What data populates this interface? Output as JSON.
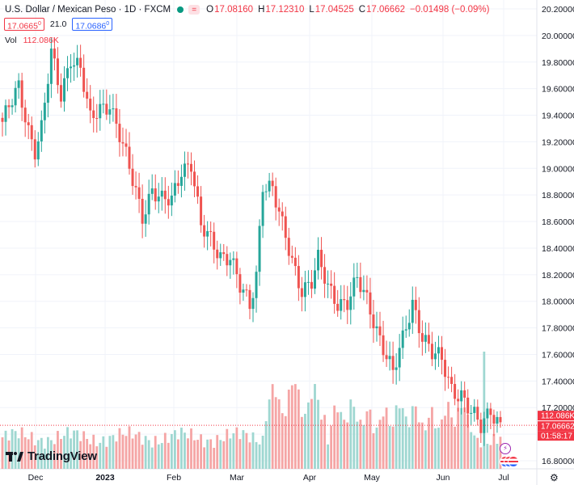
{
  "header": {
    "symbol": "U.S. Dollar / Mexican Peso · 1D · FXCM",
    "o_label": "O",
    "o_value": "17.08160",
    "h_label": "H",
    "h_value": "17.12310",
    "l_label": "L",
    "l_value": "17.04525",
    "c_label": "C",
    "c_value": "17.06662",
    "change": "−0.01498 (−0.09%)",
    "eq_icon": "equals-icon"
  },
  "quote": {
    "sell": "17.0665",
    "sell_small": "0",
    "spread": "21.0",
    "buy": "17.0686",
    "buy_small": "0"
  },
  "volume": {
    "label": "Vol",
    "value": "112.086K"
  },
  "price_badges": {
    "volume": "112.086K",
    "last": "17.06662",
    "countdown": "01:58:17"
  },
  "branding": {
    "logo_text": "TradingView"
  },
  "icons": {
    "events": "flash-icon",
    "flags": "us-flag-icon",
    "settings": "gear-icon"
  },
  "colors": {
    "up": "#26a69a",
    "down": "#ef5350",
    "vol_up": "#9fd7d1",
    "vol_down": "#f5a5a5",
    "last_line": "#f23645"
  },
  "chart_data": {
    "type": "candlestick",
    "y_axis": {
      "min": 16.8,
      "max": 20.2,
      "ticks": [
        "20.20000",
        "20.00000",
        "19.80000",
        "19.60000",
        "19.40000",
        "19.20000",
        "19.00000",
        "18.80000",
        "18.60000",
        "18.40000",
        "18.20000",
        "18.00000",
        "17.80000",
        "17.60000",
        "17.40000",
        "17.20000",
        "17.00000",
        "16.80000"
      ]
    },
    "x_axis": {
      "ticks": [
        "Dec",
        "2023",
        "Feb",
        "Mar",
        "Apr",
        "May",
        "Jun",
        "Jul"
      ]
    },
    "anchors": [
      {
        "i": 0,
        "c": 19.35
      },
      {
        "i": 3,
        "c": 19.5
      },
      {
        "i": 5,
        "c": 19.6
      },
      {
        "i": 8,
        "c": 19.3
      },
      {
        "i": 10,
        "c": 19.15
      },
      {
        "i": 12,
        "c": 19.3
      },
      {
        "i": 15,
        "c": 19.85
      },
      {
        "i": 18,
        "c": 19.55
      },
      {
        "i": 21,
        "c": 19.85
      },
      {
        "i": 24,
        "c": 19.75
      },
      {
        "i": 27,
        "c": 19.35
      },
      {
        "i": 30,
        "c": 19.45
      },
      {
        "i": 33,
        "c": 19.5
      },
      {
        "i": 36,
        "c": 19.25
      },
      {
        "i": 40,
        "c": 18.9
      },
      {
        "i": 43,
        "c": 18.65
      },
      {
        "i": 46,
        "c": 18.85
      },
      {
        "i": 49,
        "c": 18.75
      },
      {
        "i": 52,
        "c": 18.75
      },
      {
        "i": 55,
        "c": 19.0
      },
      {
        "i": 58,
        "c": 19.05
      },
      {
        "i": 61,
        "c": 18.55
      },
      {
        "i": 64,
        "c": 18.45
      },
      {
        "i": 67,
        "c": 18.35
      },
      {
        "i": 70,
        "c": 18.35
      },
      {
        "i": 73,
        "c": 18.1
      },
      {
        "i": 76,
        "c": 17.95
      },
      {
        "i": 78,
        "c": 18.2
      },
      {
        "i": 80,
        "c": 18.9
      },
      {
        "i": 83,
        "c": 18.85
      },
      {
        "i": 86,
        "c": 18.55
      },
      {
        "i": 89,
        "c": 18.3
      },
      {
        "i": 92,
        "c": 18.1
      },
      {
        "i": 95,
        "c": 18.15
      },
      {
        "i": 97,
        "c": 18.3
      },
      {
        "i": 100,
        "c": 18.1
      },
      {
        "i": 103,
        "c": 18.0
      },
      {
        "i": 106,
        "c": 18.0
      },
      {
        "i": 109,
        "c": 18.15
      },
      {
        "i": 112,
        "c": 18.0
      },
      {
        "i": 115,
        "c": 17.8
      },
      {
        "i": 118,
        "c": 17.6
      },
      {
        "i": 120,
        "c": 17.45
      },
      {
        "i": 123,
        "c": 17.7
      },
      {
        "i": 126,
        "c": 18.0
      },
      {
        "i": 129,
        "c": 17.75
      },
      {
        "i": 132,
        "c": 17.6
      },
      {
        "i": 135,
        "c": 17.55
      },
      {
        "i": 138,
        "c": 17.35
      },
      {
        "i": 141,
        "c": 17.3
      },
      {
        "i": 144,
        "c": 17.15
      },
      {
        "i": 147,
        "c": 17.05
      },
      {
        "i": 150,
        "c": 17.2
      },
      {
        "i": 153,
        "c": 17.07
      }
    ],
    "candles": 154,
    "volume_bars": 154
  }
}
